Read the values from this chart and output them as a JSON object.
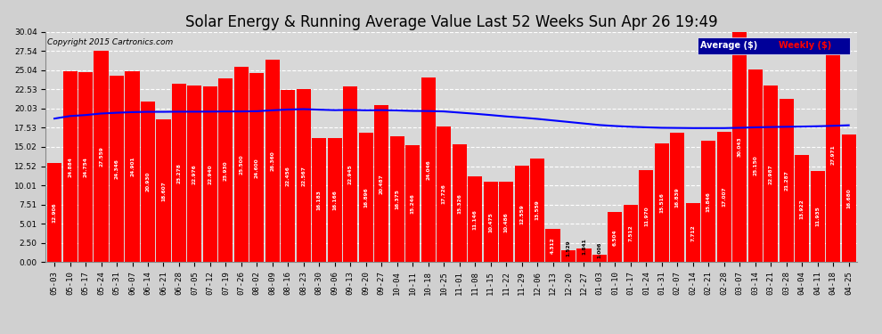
{
  "title": "Solar Energy & Running Average Value Last 52 Weeks Sun Apr 26 19:49",
  "copyright": "Copyright 2015 Cartronics.com",
  "legend_avg": "Average ($)",
  "legend_weekly": "Weekly ($)",
  "dates": [
    "05-03",
    "05-10",
    "05-17",
    "05-24",
    "05-31",
    "06-07",
    "06-14",
    "06-21",
    "06-28",
    "07-05",
    "07-12",
    "07-19",
    "07-26",
    "08-02",
    "08-09",
    "08-16",
    "08-23",
    "08-30",
    "09-06",
    "09-13",
    "09-20",
    "09-27",
    "10-04",
    "10-11",
    "10-18",
    "10-25",
    "11-01",
    "11-08",
    "11-15",
    "11-22",
    "11-29",
    "12-06",
    "12-13",
    "12-20",
    "12-27",
    "01-03",
    "01-10",
    "01-17",
    "01-24",
    "01-31",
    "02-07",
    "02-14",
    "02-21",
    "02-28",
    "03-07",
    "03-14",
    "03-21",
    "03-28",
    "04-04",
    "04-11",
    "04-18",
    "04-25"
  ],
  "weekly_values": [
    12.906,
    24.884,
    24.754,
    27.559,
    24.346,
    24.901,
    20.93,
    18.607,
    23.278,
    22.976,
    22.94,
    23.93,
    25.5,
    24.6,
    26.36,
    22.456,
    22.567,
    16.183,
    16.166,
    22.945,
    16.896,
    20.487,
    16.375,
    15.246,
    24.046,
    17.726,
    15.326,
    11.146,
    10.475,
    10.486,
    12.559,
    13.559,
    4.312,
    1.529,
    1.841,
    1.006,
    6.504,
    7.512,
    11.97,
    15.516,
    16.839,
    7.712,
    15.846,
    17.007,
    30.043,
    25.15,
    22.987,
    21.287,
    13.922,
    11.935,
    27.971,
    16.68
  ],
  "avg_values": [
    18.72,
    19.05,
    19.18,
    19.38,
    19.48,
    19.56,
    19.6,
    19.6,
    19.62,
    19.62,
    19.63,
    19.65,
    19.65,
    19.68,
    19.8,
    19.9,
    19.95,
    19.88,
    19.82,
    19.85,
    19.8,
    19.82,
    19.78,
    19.72,
    19.7,
    19.65,
    19.5,
    19.35,
    19.18,
    19.0,
    18.85,
    18.68,
    18.48,
    18.28,
    18.08,
    17.88,
    17.75,
    17.65,
    17.58,
    17.52,
    17.5,
    17.48,
    17.48,
    17.48,
    17.52,
    17.58,
    17.62,
    17.65,
    17.68,
    17.72,
    17.78,
    17.85
  ],
  "bar_color": "#ff0000",
  "avg_line_color": "#0000ff",
  "background_color": "#d0d0d0",
  "plot_bg_color": "#d8d8d8",
  "grid_color": "#ffffff",
  "yticks": [
    0.0,
    2.5,
    5.01,
    7.51,
    10.01,
    12.52,
    15.02,
    17.53,
    20.03,
    22.53,
    25.04,
    27.54,
    30.04
  ],
  "ymax": 30.04,
  "ymin": 0.0,
  "title_fontsize": 12,
  "tick_fontsize": 6.5,
  "legend_bg_color": "#000099",
  "legend_text_color_avg": "#ffffff",
  "legend_text_color_weekly": "#ff0000"
}
